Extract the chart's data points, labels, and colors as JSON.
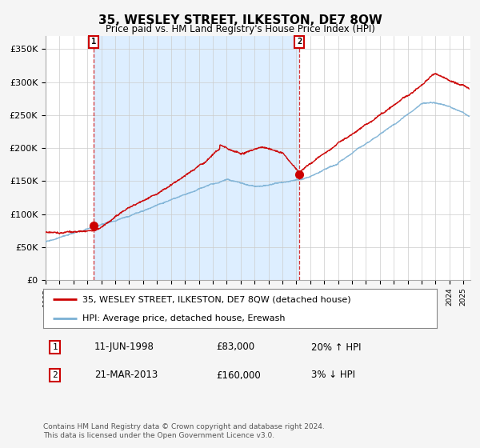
{
  "title": "35, WESLEY STREET, ILKESTON, DE7 8QW",
  "subtitle": "Price paid vs. HM Land Registry's House Price Index (HPI)",
  "ylabel_ticks": [
    "£0",
    "£50K",
    "£100K",
    "£150K",
    "£200K",
    "£250K",
    "£300K",
    "£350K"
  ],
  "ytick_values": [
    0,
    50000,
    100000,
    150000,
    200000,
    250000,
    300000,
    350000
  ],
  "ylim": [
    0,
    370000
  ],
  "xlim_start": 1995.0,
  "xlim_end": 2025.5,
  "transaction1": {
    "date": "11-JUN-1998",
    "price": 83000,
    "hpi_pct": "20% ↑ HPI",
    "label": "1",
    "x": 1998.44
  },
  "transaction2": {
    "date": "21-MAR-2013",
    "price": 160000,
    "hpi_pct": "3% ↓ HPI",
    "label": "2",
    "x": 2013.22
  },
  "legend_red": "35, WESLEY STREET, ILKESTON, DE7 8QW (detached house)",
  "legend_blue": "HPI: Average price, detached house, Erewash",
  "footer": "Contains HM Land Registry data © Crown copyright and database right 2024.\nThis data is licensed under the Open Government Licence v3.0.",
  "red_color": "#cc0000",
  "blue_color": "#7ab0d4",
  "shade_color": "#ddeeff",
  "background_color": "#f5f5f5",
  "plot_bg_color": "#ffffff"
}
